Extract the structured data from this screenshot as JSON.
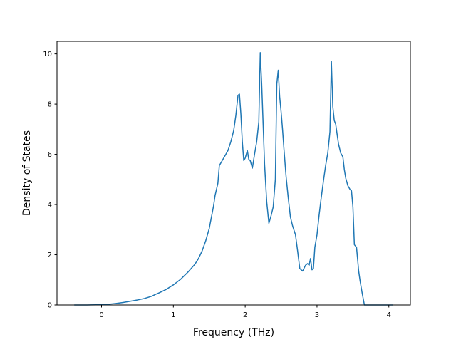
{
  "chart_data": {
    "type": "line",
    "title": "",
    "xlabel": "Frequency (THz)",
    "ylabel": "Density of States",
    "xlim": [
      -0.62,
      4.3
    ],
    "ylim": [
      0,
      10.5
    ],
    "grid": false,
    "legend": "none",
    "xticks": [
      0,
      1,
      2,
      3,
      4
    ],
    "yticks": [
      0,
      2,
      4,
      6,
      8,
      10
    ],
    "xtick_labels": [
      "0",
      "1",
      "2",
      "3",
      "4"
    ],
    "ytick_labels": [
      "0",
      "2",
      "4",
      "6",
      "8",
      "10"
    ],
    "series": [
      {
        "color": "#1f77b4",
        "x": [
          -0.38,
          -0.2,
          0.0,
          0.1,
          0.2,
          0.3,
          0.4,
          0.5,
          0.6,
          0.7,
          0.75,
          0.8,
          0.9,
          1.0,
          1.1,
          1.2,
          1.3,
          1.35,
          1.4,
          1.45,
          1.5,
          1.53,
          1.56,
          1.58,
          1.62,
          1.64,
          1.68,
          1.72,
          1.76,
          1.8,
          1.84,
          1.87,
          1.9,
          1.92,
          1.94,
          1.96,
          1.98,
          2.0,
          2.03,
          2.05,
          2.07,
          2.1,
          2.13,
          2.16,
          2.19,
          2.21,
          2.23,
          2.25,
          2.27,
          2.3,
          2.33,
          2.36,
          2.39,
          2.42,
          2.44,
          2.46,
          2.48,
          2.5,
          2.52,
          2.54,
          2.57,
          2.6,
          2.63,
          2.66,
          2.7,
          2.73,
          2.76,
          2.8,
          2.84,
          2.87,
          2.89,
          2.91,
          2.93,
          2.95,
          2.97,
          3.0,
          3.03,
          3.06,
          3.09,
          3.12,
          3.15,
          3.18,
          3.2,
          3.22,
          3.24,
          3.26,
          3.28,
          3.3,
          3.33,
          3.36,
          3.38,
          3.4,
          3.43,
          3.46,
          3.48,
          3.5,
          3.52,
          3.55,
          3.58,
          3.6,
          3.63,
          3.66,
          3.69,
          3.72,
          3.8,
          3.9,
          4.0,
          4.06
        ],
        "y": [
          0,
          0,
          0.01,
          0.03,
          0.06,
          0.1,
          0.15,
          0.2,
          0.26,
          0.35,
          0.42,
          0.48,
          0.62,
          0.8,
          1.02,
          1.3,
          1.62,
          1.85,
          2.15,
          2.55,
          3.05,
          3.5,
          3.95,
          4.35,
          4.85,
          5.55,
          5.75,
          5.95,
          6.15,
          6.5,
          6.95,
          7.55,
          8.35,
          8.4,
          7.6,
          6.5,
          5.75,
          5.85,
          6.15,
          5.8,
          5.75,
          5.45,
          6.0,
          6.5,
          7.3,
          10.05,
          8.8,
          7.2,
          5.6,
          4.1,
          3.25,
          3.55,
          3.9,
          5.0,
          8.8,
          9.35,
          8.3,
          7.7,
          7.0,
          6.2,
          5.1,
          4.25,
          3.5,
          3.15,
          2.8,
          2.15,
          1.45,
          1.35,
          1.58,
          1.65,
          1.58,
          1.85,
          1.4,
          1.45,
          2.3,
          2.8,
          3.6,
          4.3,
          4.95,
          5.55,
          6.05,
          6.9,
          9.7,
          7.9,
          7.35,
          7.2,
          6.8,
          6.4,
          6.05,
          5.9,
          5.4,
          5.05,
          4.75,
          4.6,
          4.55,
          3.9,
          2.4,
          2.3,
          1.35,
          0.95,
          0.45,
          0.0,
          0.0,
          0.0,
          0.0,
          0.0,
          0.0,
          0.0
        ]
      }
    ]
  }
}
